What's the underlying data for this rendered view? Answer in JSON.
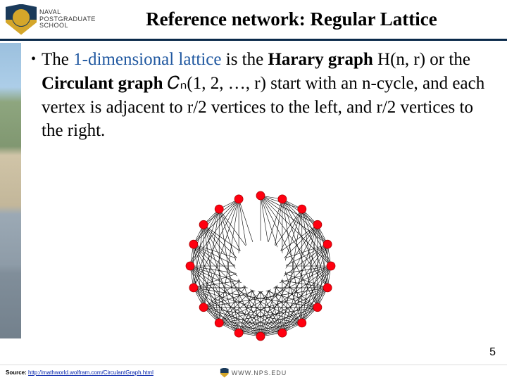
{
  "header": {
    "logo_line1": "NAVAL",
    "logo_line2": "POSTGRADUATE",
    "logo_line3": "SCHOOL",
    "title": "Reference network: Regular Lattice"
  },
  "body": {
    "text_pre": "The ",
    "text_lattice": "1-dimensional lattice",
    "text_mid1": " is the ",
    "text_harary": "Harary graph",
    "text_hn": " H(n, r) or the ",
    "text_circulant": "Circulant graph",
    "text_cn": " 𝐶ₙ(1, 2, …, r) start with an n-cycle, and each vertex is adjacent to r/2 vertices to the left, and r/2 vertices to the right."
  },
  "figure": {
    "type": "circulant-graph",
    "n": 20,
    "outer_radius": 100,
    "inner_clear_radius": 36,
    "node_radius": 6,
    "node_fill": "#ff0010",
    "node_stroke": "#aa0000",
    "edge_stroke": "#000000",
    "edge_width": 0.6,
    "offsets": [
      1,
      2,
      3,
      4,
      5,
      6,
      7,
      8,
      9,
      10
    ],
    "background": "#ffffff"
  },
  "footer": {
    "source_label": "Source: ",
    "source_url_text": "http://mathworld.wolfram.com/CirculantGraph.html",
    "nps_url": "WWW.NPS.EDU",
    "page_number": "5"
  }
}
